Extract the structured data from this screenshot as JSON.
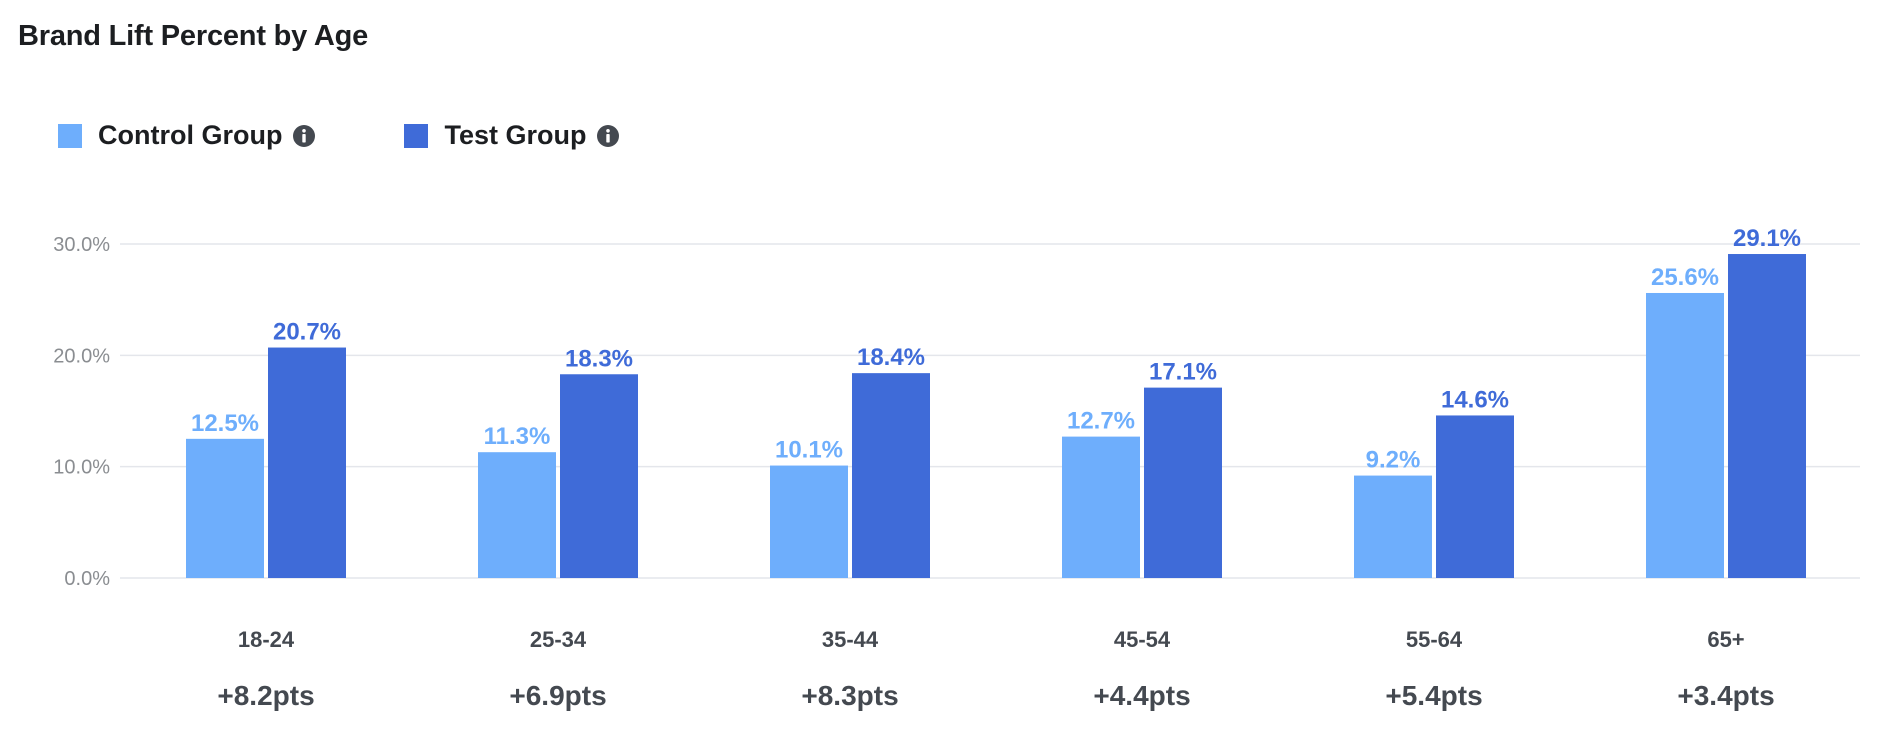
{
  "chart_data": {
    "type": "bar",
    "title": "Brand Lift Percent by Age",
    "categories": [
      "18-24",
      "25-34",
      "35-44",
      "45-54",
      "55-64",
      "65+"
    ],
    "series": [
      {
        "name": "Control Group",
        "color": "#6eaefc",
        "values": [
          12.5,
          11.3,
          10.1,
          12.7,
          9.2,
          25.6
        ],
        "labels": [
          "12.5%",
          "11.3%",
          "10.1%",
          "12.7%",
          "9.2%",
          "25.6%"
        ]
      },
      {
        "name": "Test Group",
        "color": "#3f6bd8",
        "values": [
          20.7,
          18.3,
          18.4,
          17.1,
          14.6,
          29.1
        ],
        "labels": [
          "20.7%",
          "18.3%",
          "18.4%",
          "17.1%",
          "14.6%",
          "29.1%"
        ]
      }
    ],
    "lift_labels": [
      "+8.2pts",
      "+6.9pts",
      "+8.3pts",
      "+4.4pts",
      "+5.4pts",
      "+3.4pts"
    ],
    "yticks": [
      0,
      10,
      20,
      30
    ],
    "ytick_labels": [
      "0.0%",
      "10.0%",
      "20.0%",
      "30.0%"
    ],
    "ylim": [
      0,
      30
    ],
    "grid": true,
    "legend_position": "top-left",
    "xlabel": "",
    "ylabel": ""
  },
  "legend": {
    "items": [
      {
        "label": "Control Group",
        "icon": "info-icon"
      },
      {
        "label": "Test Group",
        "icon": "info-icon"
      }
    ]
  }
}
